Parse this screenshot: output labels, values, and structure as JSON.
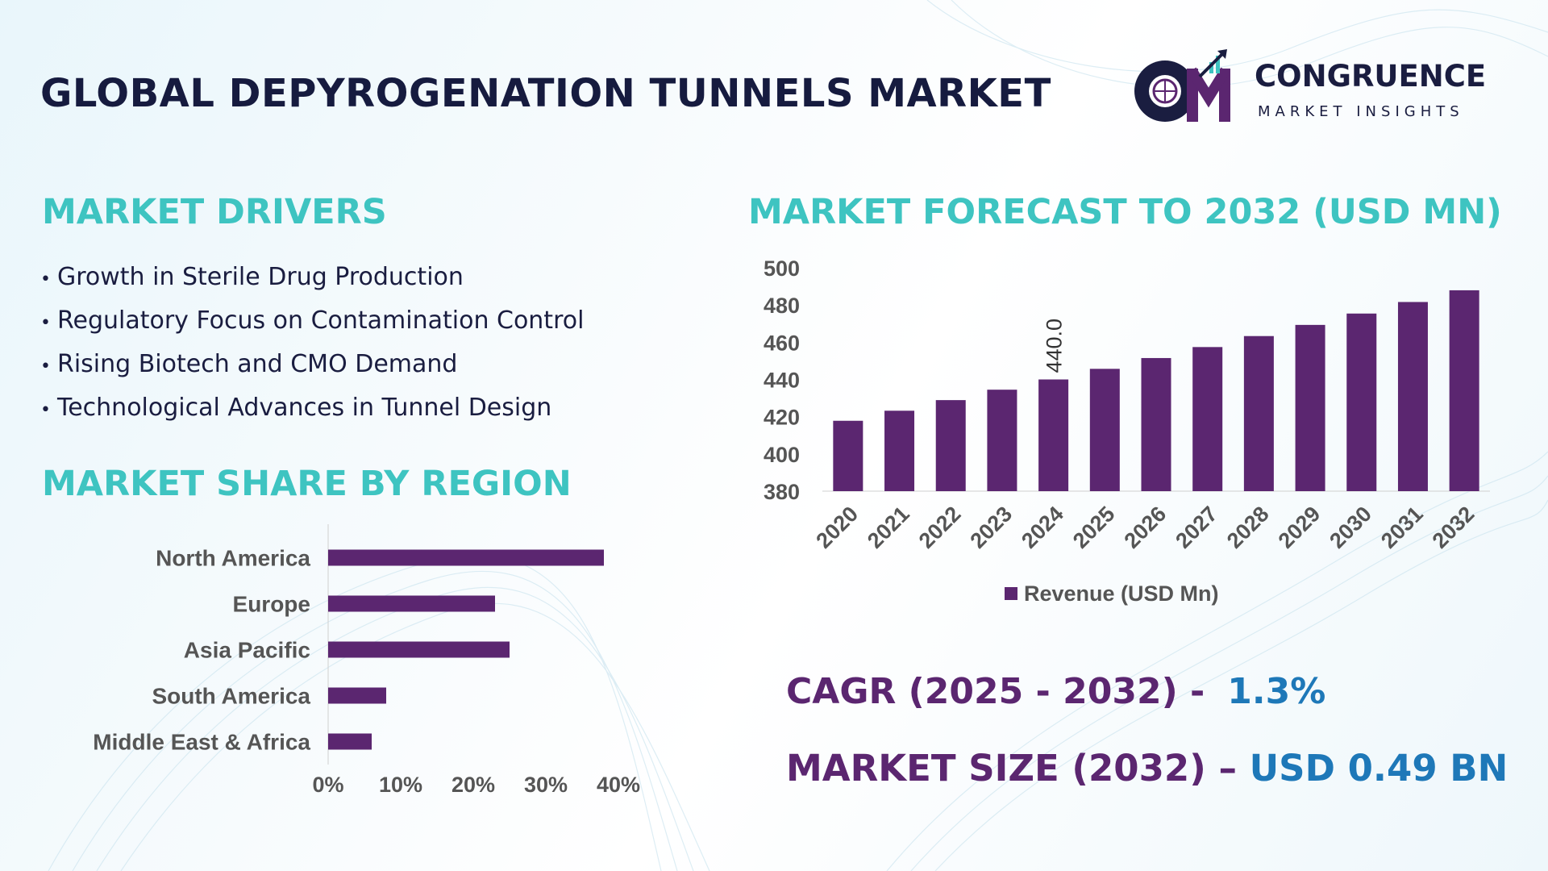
{
  "title": "GLOBAL DEPYROGENATION TUNNELS MARKET",
  "logo": {
    "mark": "CM",
    "name": "CONGRUENCE",
    "subtitle": "MARKET INSIGHTS"
  },
  "drivers": {
    "heading": "MARKET DRIVERS",
    "items": [
      "Growth in Sterile Drug Production",
      "Regulatory Focus on Contamination Control",
      "Rising Biotech and CMO Demand",
      "Technological Advances in Tunnel Design"
    ]
  },
  "region": {
    "heading": "MARKET SHARE BY REGION"
  },
  "forecast": {
    "heading": "MARKET FORECAST TO 2032 (USD MN)"
  },
  "kpis": {
    "cagr_label": "CAGR (2025 - 2032) -",
    "cagr_value": "1.3%",
    "size_label": "MARKET SIZE (2032) –",
    "size_value": "USD 0.49 BN"
  },
  "colors": {
    "accent": "#3ec4c1",
    "bar": "#5b2670",
    "title": "#161b3f",
    "value_blue": "#1e78b8"
  },
  "chart_data": [
    {
      "type": "bar",
      "orientation": "horizontal",
      "categories": [
        "North America",
        "Europe",
        "Asia Pacific",
        "South America",
        "Middle East & Africa"
      ],
      "values": [
        38,
        23,
        25,
        8,
        6
      ],
      "xlim": [
        0,
        40
      ],
      "x_ticks": [
        "0%",
        "10%",
        "20%",
        "30%",
        "40%"
      ],
      "grid": false
    },
    {
      "type": "bar",
      "categories": [
        "2020",
        "2021",
        "2022",
        "2023",
        "2024",
        "2025",
        "2026",
        "2027",
        "2028",
        "2029",
        "2030",
        "2031",
        "2032"
      ],
      "series": [
        {
          "name": "Revenue (USD Mn)",
          "values": [
            417.8,
            423.2,
            428.9,
            434.5,
            440.0,
            445.7,
            451.5,
            457.4,
            463.3,
            469.3,
            475.4,
            481.6,
            487.9
          ]
        }
      ],
      "data_labels": [
        {
          "category": "2024",
          "text": "440.0"
        }
      ],
      "ylim": [
        380,
        500
      ],
      "y_ticks": [
        380,
        400,
        420,
        440,
        460,
        480,
        500
      ],
      "legend": "bottom",
      "grid": false
    }
  ]
}
